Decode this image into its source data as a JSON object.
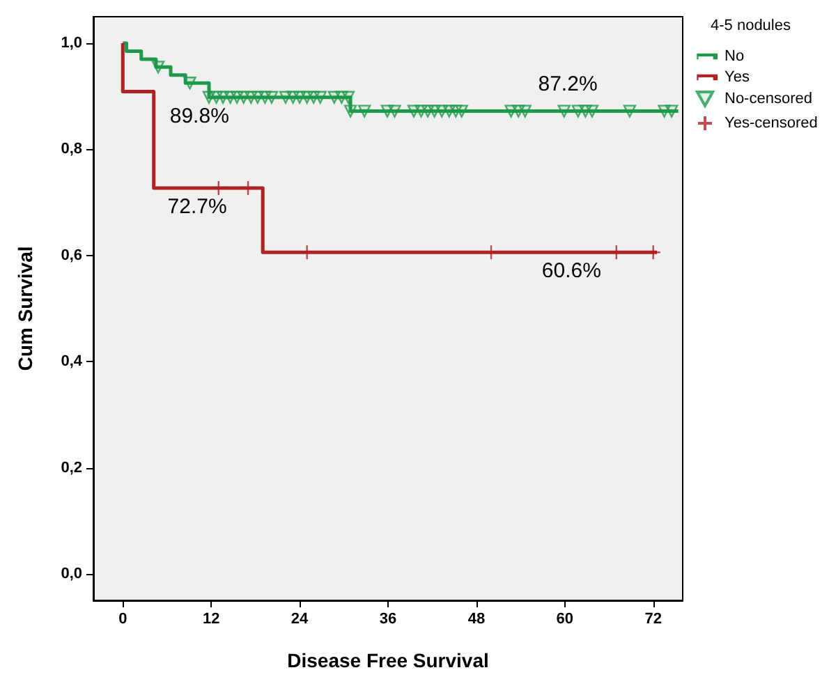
{
  "chart_data": {
    "type": "step",
    "xlabel": "Disease Free Survival",
    "ylabel": "Cum Survival",
    "legend_title": "4-5 nodules",
    "xlim": [
      -4,
      76
    ],
    "xticks": [
      0,
      12,
      24,
      36,
      48,
      60,
      72
    ],
    "ylim": [
      -0.05,
      1.05
    ],
    "yticks": [
      {
        "value": 0,
        "label": "0,0"
      },
      {
        "value": 0.2,
        "label": "0,2"
      },
      {
        "value": 0.4,
        "label": "0,4"
      },
      {
        "value": 0.6,
        "label": "0,6"
      },
      {
        "value": 0.8,
        "label": "0,8"
      },
      {
        "value": 1,
        "label": "1,0"
      }
    ],
    "grid": false,
    "legend": "top right",
    "series": [
      {
        "name": "No",
        "color": "#1e9a4a",
        "marker": "none",
        "x": [
          0,
          0.5,
          2.5,
          4.5,
          6.5,
          8.5,
          11.7,
          30.9,
          75.4
        ],
        "values": [
          1,
          0.985,
          0.97,
          0.955,
          0.94,
          0.925,
          0.898,
          0.872,
          0.872
        ]
      },
      {
        "name": "Yes",
        "color": "#b22222",
        "marker": "none",
        "x": [
          0,
          0,
          4.2,
          19,
          72.5
        ],
        "values": [
          1,
          0.909,
          0.727,
          0.606,
          0.606
        ]
      },
      {
        "name": "No-censored",
        "type": "scatter",
        "color": "#1e9a4a",
        "marker": "triangle",
        "x": [
          4.8,
          9.1,
          11.7,
          12.7,
          13.6,
          14.6,
          15.5,
          16.4,
          17.4,
          18.3,
          19.3,
          20.2,
          22.1,
          23.1,
          24,
          25,
          25.9,
          26.8,
          28.7,
          29.7,
          30.6,
          30.9,
          32.8,
          35.9,
          36.9,
          39.5,
          40.5,
          41.4,
          42.3,
          43.3,
          44.3,
          45.2,
          46,
          52.7,
          53.7,
          54.6,
          59.9,
          61.8,
          62.8,
          63.7,
          68.8,
          73.5,
          74.5
        ],
        "values": [
          0.955,
          0.925,
          0.898,
          0.898,
          0.898,
          0.898,
          0.898,
          0.898,
          0.898,
          0.898,
          0.898,
          0.898,
          0.898,
          0.898,
          0.898,
          0.898,
          0.898,
          0.898,
          0.898,
          0.898,
          0.898,
          0.872,
          0.872,
          0.872,
          0.872,
          0.872,
          0.872,
          0.872,
          0.872,
          0.872,
          0.872,
          0.872,
          0.872,
          0.872,
          0.872,
          0.872,
          0.872,
          0.872,
          0.872,
          0.872,
          0.872,
          0.872,
          0.872
        ]
      },
      {
        "name": "Yes-censored",
        "type": "scatter",
        "color": "#b22222",
        "marker": "cross",
        "x": [
          13,
          17,
          25,
          50,
          67,
          72
        ],
        "values": [
          0.727,
          0.727,
          0.606,
          0.606,
          0.606,
          0.606
        ]
      }
    ],
    "annotations": [
      {
        "text": "89.8%",
        "x": 10.4,
        "y": 0.898
      },
      {
        "text": "72.7%",
        "x": 10.1,
        "y": 0.727
      },
      {
        "text": "87.2%",
        "x": 60.4,
        "y": 0.872
      },
      {
        "text": "60.6%",
        "x": 60.9,
        "y": 0.606
      }
    ]
  }
}
